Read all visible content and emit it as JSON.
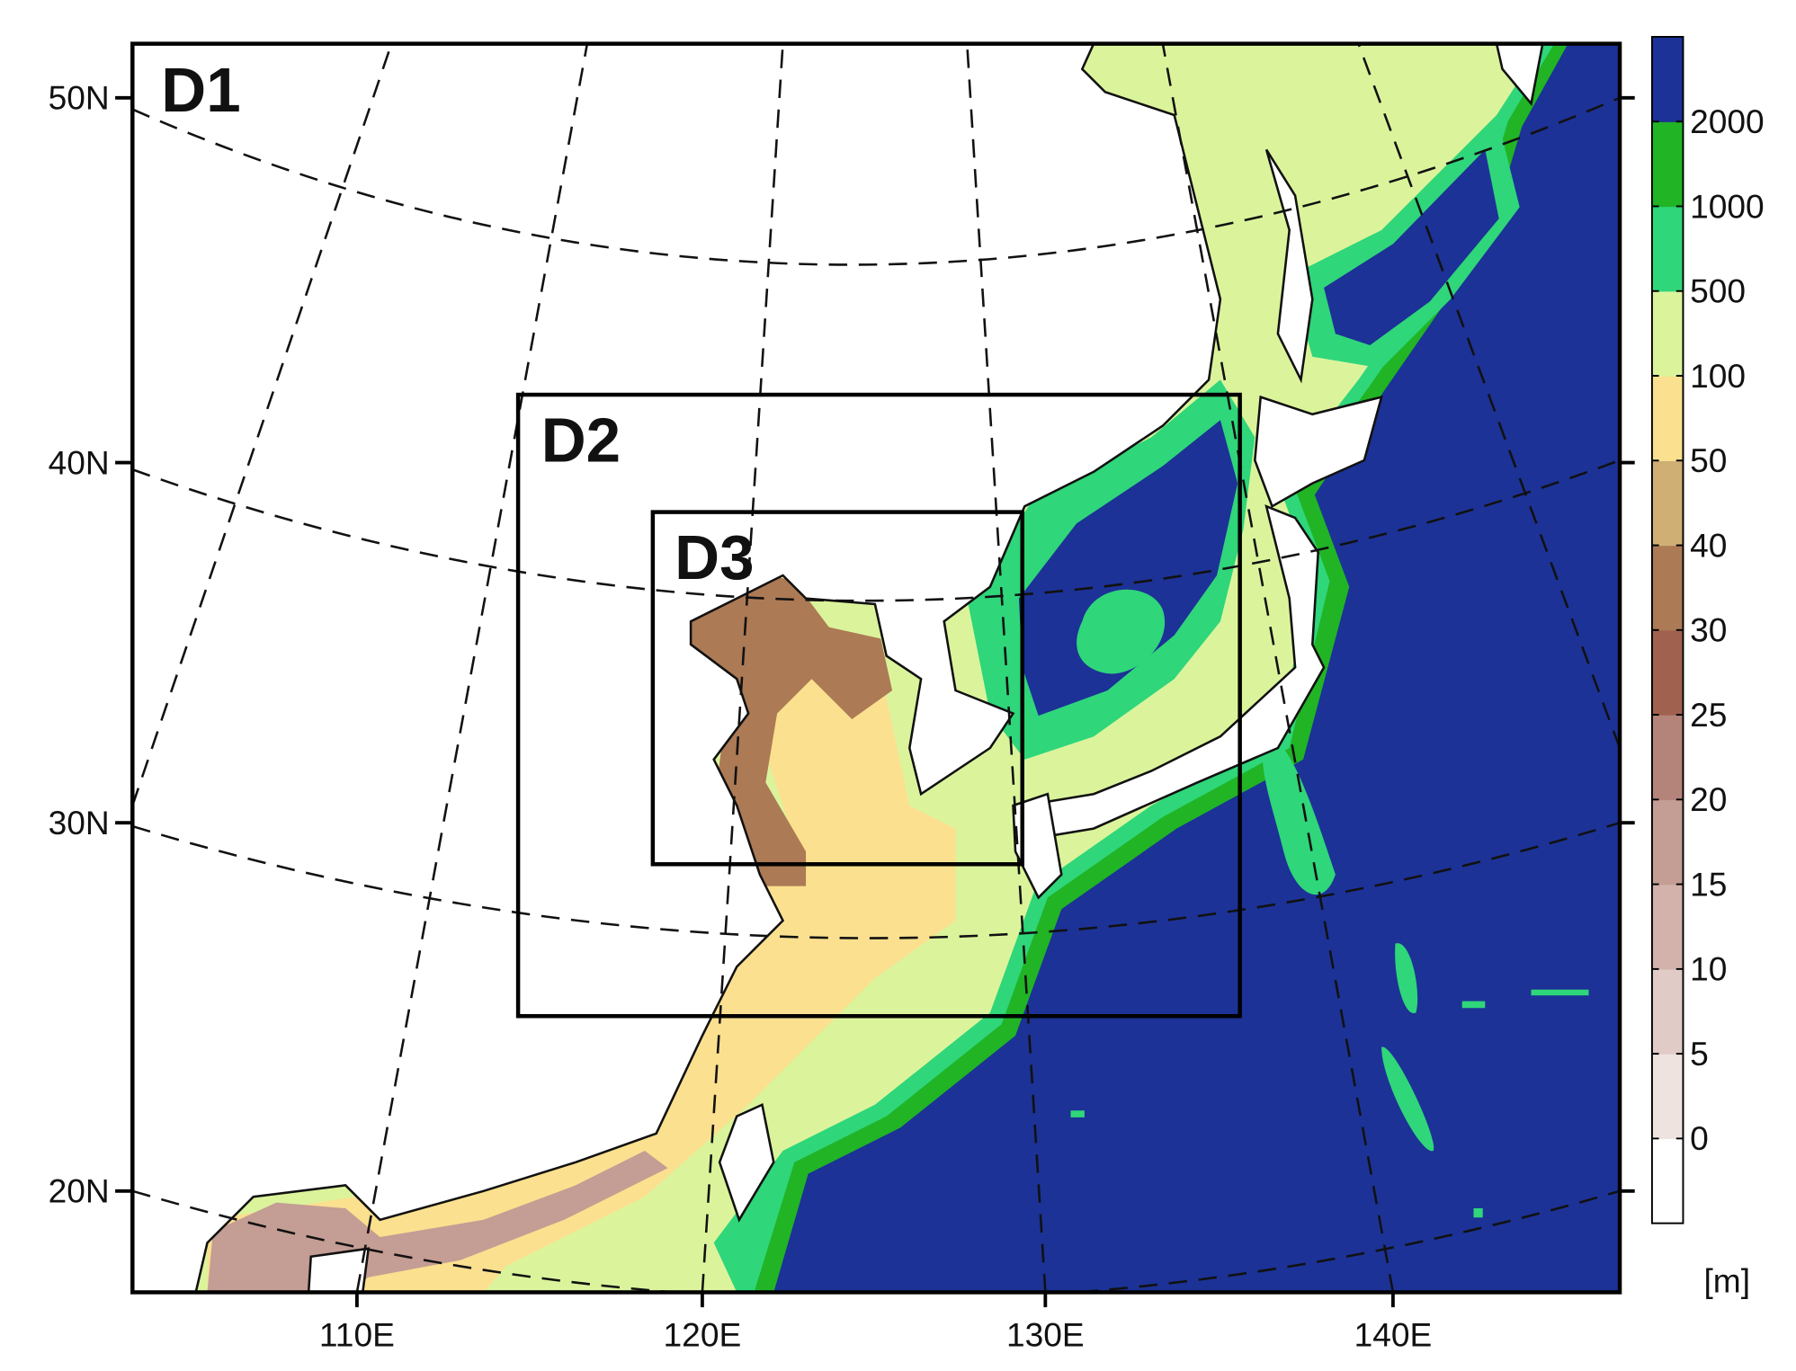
{
  "map": {
    "domains": [
      {
        "label": "D1"
      },
      {
        "label": "D2"
      },
      {
        "label": "D3"
      }
    ],
    "latitude_labels": [
      "50N",
      "40N",
      "30N",
      "20N"
    ],
    "longitude_labels": [
      "110E",
      "120E",
      "130E",
      "140E"
    ],
    "colorbar": {
      "levels": [
        0,
        5,
        10,
        15,
        20,
        25,
        30,
        40,
        50,
        100,
        500,
        1000,
        2000
      ],
      "colors": [
        "#ffffff",
        "#efe3df",
        "#e0cbc6",
        "#d2b2ab",
        "#c49d94",
        "#b4847a",
        "#a0614f",
        "#ac7a55",
        "#d0af74",
        "#fbe08f",
        "#dbf49c",
        "#2fd67a",
        "#21b425",
        "#1c3296"
      ],
      "unit": "[m]"
    }
  }
}
